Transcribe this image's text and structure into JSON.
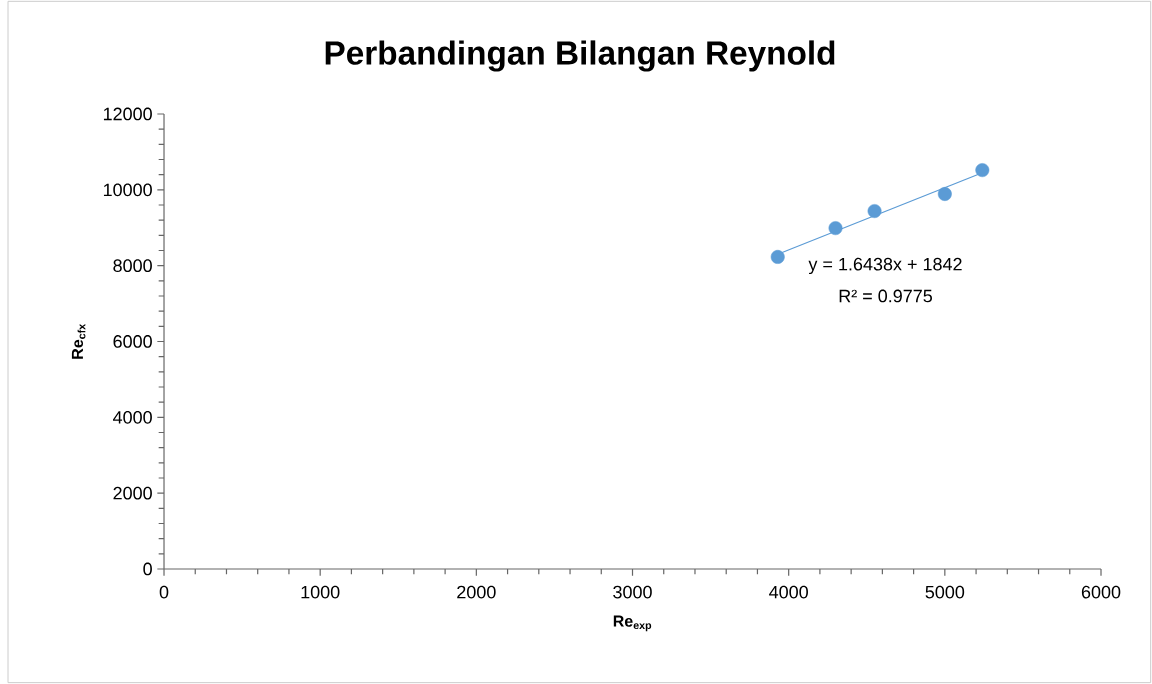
{
  "chart_data": {
    "type": "scatter",
    "title": "Perbandingan Bilangan Reynold",
    "xlabel": "Re$_{exp}$",
    "ylabel": "Re$_{cfx}$",
    "xlim": [
      0,
      6000
    ],
    "xticks": [
      0,
      1000,
      2000,
      3000,
      4000,
      5000,
      6000
    ],
    "ylim": [
      0,
      12000
    ],
    "yticks": [
      0,
      2000,
      4000,
      6000,
      8000,
      10000,
      12000
    ],
    "grid": false,
    "series": [
      {
        "color": "#5b9bd5",
        "x": [
          3930,
          4300,
          4550,
          5000,
          5240
        ],
        "values": [
          8230,
          8990,
          9440,
          9890,
          10520
        ]
      },
      {
        "type": "line",
        "color": "#5b9bd5",
        "x": [
          3930,
          5240
        ],
        "values": [
          8300,
          10450
        ]
      }
    ],
    "annotations": [
      "y = 1.6438x + 1842",
      "R² = 0.9775"
    ]
  }
}
